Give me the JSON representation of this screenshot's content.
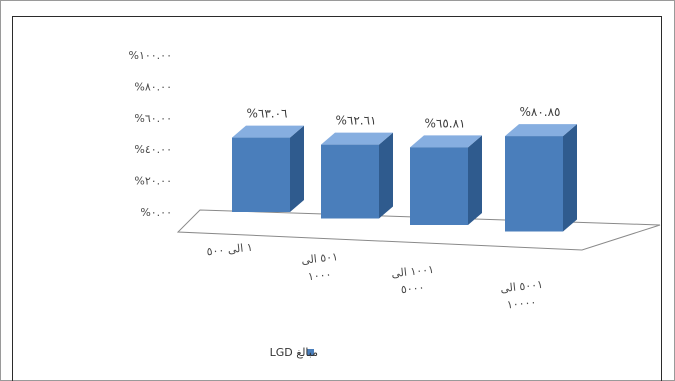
{
  "chart_data": {
    "type": "bar",
    "variant": "3d-column",
    "categories": [
      [
        "١ الى ٥٠٠"
      ],
      [
        "٥٠١ الى",
        "١٠٠٠"
      ],
      [
        "١٠٠١ الى",
        "٥٠٠٠"
      ],
      [
        "٥٠٠١ الى",
        "١٠٠٠٠"
      ]
    ],
    "series": [
      {
        "name": "مبالغ LGD",
        "values": [
          63.06,
          62.61,
          65.81,
          80.85
        ],
        "labels": [
          "%٦٣.٠٦",
          "%٦٢.٦١",
          "%٦٥.٨١",
          "%٨٠.٨٥"
        ]
      }
    ],
    "ylim": [
      0,
      100
    ],
    "yticks": [
      {
        "value": 0,
        "label": "%٠.٠٠"
      },
      {
        "value": 20,
        "label": "%٢٠.٠٠"
      },
      {
        "value": 40,
        "label": "%٤٠.٠٠"
      },
      {
        "value": 60,
        "label": "%٦٠.٠٠"
      },
      {
        "value": 80,
        "label": "%٨٠.٠٠"
      },
      {
        "value": 100,
        "label": "%١٠٠.٠٠"
      }
    ],
    "grid": false,
    "legend_position": "bottom-center",
    "colors": {
      "front": "#4a7ebb",
      "side": "#2f5b8e",
      "top": "#86aee0"
    }
  }
}
